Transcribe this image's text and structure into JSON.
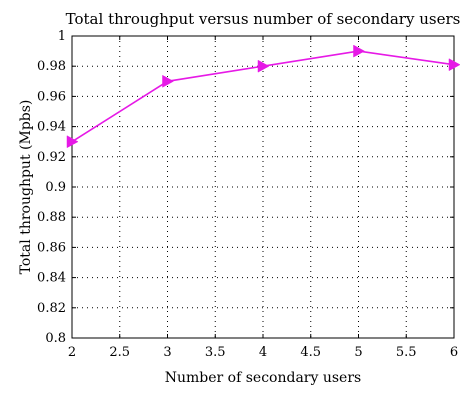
{
  "chart_data": {
    "type": "line",
    "title": "Total throughput versus number of secondary users",
    "xlabel": "Number of secondary users",
    "ylabel": "Total throughput (Mpbs)",
    "xlim": [
      2,
      6
    ],
    "ylim": [
      0.8,
      1
    ],
    "xticks": [
      "2",
      "2.5",
      "3",
      "3.5",
      "4",
      "4.5",
      "5",
      "5.5",
      "6"
    ],
    "yticks": [
      "0.8",
      "0.82",
      "0.84",
      "0.86",
      "0.88",
      "0.9",
      "0.92",
      "0.94",
      "0.96",
      "0.98",
      "1"
    ],
    "grid": true,
    "series": [
      {
        "x": [
          2,
          3,
          4,
          5,
          6
        ],
        "values": [
          0.93,
          0.97,
          0.98,
          0.99,
          0.981
        ],
        "color": "#e619e6",
        "marker": "right-triangle"
      }
    ]
  }
}
